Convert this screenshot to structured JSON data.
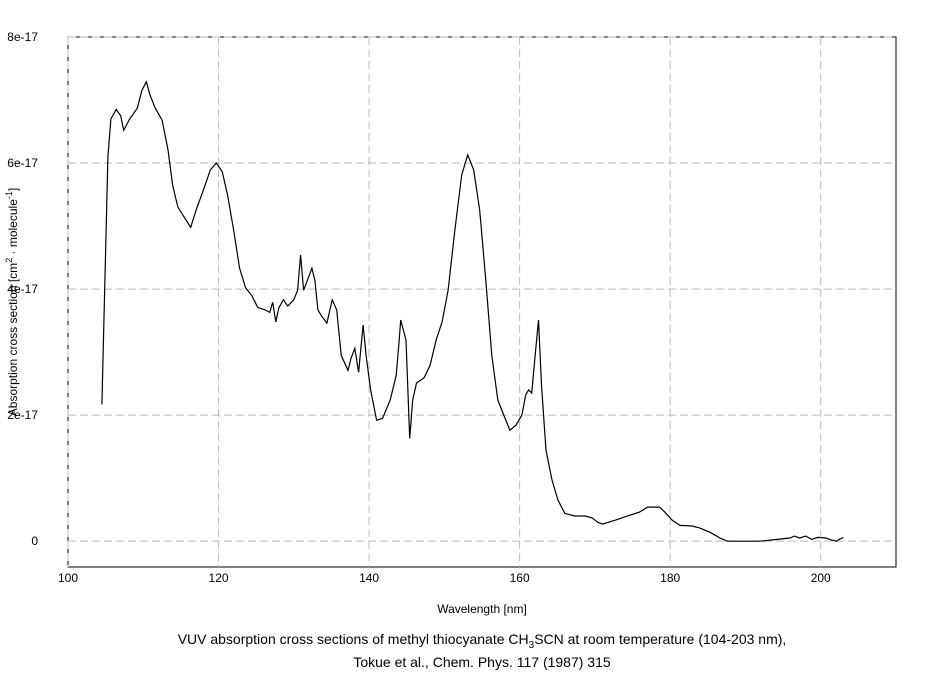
{
  "chart_data": {
    "type": "line",
    "x_label": "Wavelength [nm]",
    "y_label_parts": [
      "Absorption cross section [cm",
      "2",
      " · molecule",
      "-1",
      "]"
    ],
    "caption_line1_parts": [
      "VUV absorption cross sections of methyl thiocyanate CH",
      "3",
      "SCN at room temperature (104-203 nm),"
    ],
    "caption_line2": "Tokue et al., Chem. Phys. 117 (1987) 315",
    "xlim": [
      100,
      210
    ],
    "xticks": [
      100,
      120,
      140,
      160,
      180,
      200
    ],
    "ylim": [
      -4.1e-18,
      8e-17
    ],
    "yticks": [
      0,
      2e-17,
      4e-17,
      6e-17,
      8e-17
    ],
    "grid": true,
    "series": [
      {
        "color": "#000000",
        "x": [
          104.5,
          105.3,
          105.7,
          106.4,
          107.0,
          107.4,
          108.2,
          109.2,
          109.8,
          110.4,
          110.9,
          111.6,
          112.5,
          113.3,
          113.9,
          114.6,
          115.5,
          116.3,
          117.0,
          117.9,
          118.9,
          119.7,
          120.5,
          121.2,
          122.0,
          122.8,
          123.6,
          124.4,
          125.2,
          126.2,
          126.8,
          127.2,
          127.6,
          128.0,
          128.6,
          129.2,
          130.0,
          130.5,
          130.9,
          131.3,
          131.9,
          132.4,
          132.8,
          133.2,
          133.7,
          134.4,
          135.1,
          135.7,
          136.3,
          137.2,
          137.6,
          138.1,
          138.6,
          139.2,
          139.6,
          140.2,
          141.0,
          141.8,
          142.8,
          143.6,
          144.0,
          144.2,
          144.9,
          145.4,
          145.8,
          146.3,
          147.3,
          148.1,
          148.9,
          149.7,
          150.5,
          151.4,
          152.3,
          153.1,
          153.9,
          154.7,
          155.5,
          156.3,
          157.1,
          157.9,
          158.7,
          159.5,
          160.3,
          160.8,
          161.2,
          161.6,
          162.0,
          162.5,
          162.9,
          163.5,
          164.3,
          165.1,
          166.0,
          167.3,
          168.7,
          169.6,
          170.4,
          171.0,
          172.6,
          174.6,
          175.9,
          177.0,
          178.6,
          179.3,
          180.3,
          181.3,
          182.9,
          183.9,
          185.3,
          186.6,
          187.6,
          191.9,
          195.9,
          196.5,
          197.2,
          198.0,
          198.8,
          199.6,
          200.7,
          201.4,
          202.1,
          202.5,
          203.0
        ],
        "values": [
          2.17e-17,
          6.1e-17,
          6.7e-17,
          6.85e-17,
          6.75e-17,
          6.52e-17,
          6.7e-17,
          6.87e-17,
          7.15e-17,
          7.29e-17,
          7.08e-17,
          6.87e-17,
          6.68e-17,
          6.2e-17,
          5.65e-17,
          5.3e-17,
          5.13e-17,
          4.98e-17,
          5.25e-17,
          5.54e-17,
          5.89e-17,
          6e-17,
          5.86e-17,
          5.49e-17,
          4.94e-17,
          4.33e-17,
          4.02e-17,
          3.9e-17,
          3.71e-17,
          3.67e-17,
          3.63e-17,
          3.79e-17,
          3.48e-17,
          3.7e-17,
          3.83e-17,
          3.73e-17,
          3.83e-17,
          3.98e-17,
          4.54e-17,
          3.98e-17,
          4.17e-17,
          4.33e-17,
          4.14e-17,
          3.67e-17,
          3.57e-17,
          3.46e-17,
          3.83e-17,
          3.67e-17,
          2.95e-17,
          2.71e-17,
          2.9e-17,
          3.06e-17,
          2.68e-17,
          3.43e-17,
          2.95e-17,
          2.4e-17,
          1.92e-17,
          1.95e-17,
          2.24e-17,
          2.63e-17,
          3.19e-17,
          3.51e-17,
          3.19e-17,
          1.63e-17,
          2.24e-17,
          2.51e-17,
          2.59e-17,
          2.79e-17,
          3.19e-17,
          3.48e-17,
          3.98e-17,
          4.94e-17,
          5.81e-17,
          6.13e-17,
          5.89e-17,
          5.25e-17,
          4.14e-17,
          2.95e-17,
          2.24e-17,
          2e-17,
          1.76e-17,
          1.84e-17,
          2e-17,
          2.32e-17,
          2.4e-17,
          2.35e-17,
          2.87e-17,
          3.51e-17,
          2.48e-17,
          1.44e-17,
          9.7e-18,
          6.5e-18,
          4.4e-18,
          4e-18,
          4e-18,
          3.7e-18,
          3e-18,
          2.7e-18,
          3.3e-18,
          4.1e-18,
          4.6e-18,
          5.4e-18,
          5.4e-18,
          4.6e-18,
          3.3e-18,
          2.5e-18,
          2.4e-18,
          2.1e-18,
          1.4e-18,
          5e-19,
          0,
          0,
          5e-19,
          8e-19,
          5e-19,
          8e-19,
          3e-19,
          6e-19,
          5e-19,
          2e-19,
          0,
          3e-19,
          6e-19
        ]
      }
    ]
  }
}
